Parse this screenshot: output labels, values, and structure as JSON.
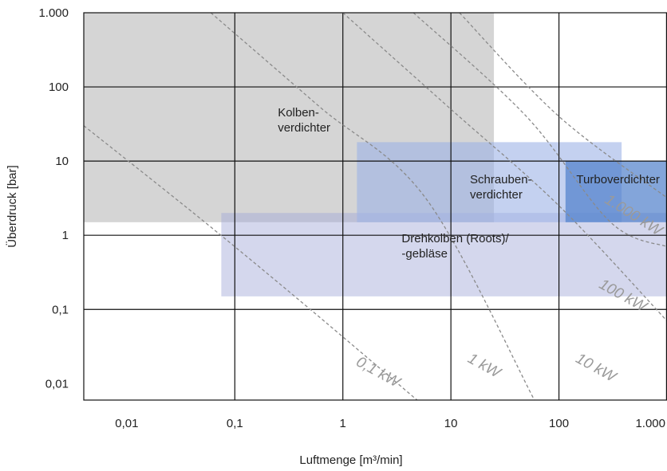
{
  "chart_data": {
    "type": "area",
    "title": "",
    "xlabel": "Luftmenge [m³/min]",
    "ylabel": "Überdruck [bar]",
    "x_scale": "log",
    "y_scale": "log",
    "xlim": [
      0.004,
      1000
    ],
    "ylim": [
      0.006,
      1000
    ],
    "x_ticks": [
      {
        "value": 0.01,
        "label": "0,01"
      },
      {
        "value": 0.1,
        "label": "0,1"
      },
      {
        "value": 1,
        "label": "1"
      },
      {
        "value": 10,
        "label": "10"
      },
      {
        "value": 100,
        "label": "100"
      },
      {
        "value": 1000,
        "label": "1.000"
      }
    ],
    "y_ticks": [
      {
        "value": 0.01,
        "label": "0,01"
      },
      {
        "value": 0.1,
        "label": "0,1"
      },
      {
        "value": 1,
        "label": "1"
      },
      {
        "value": 10,
        "label": "10"
      },
      {
        "value": 100,
        "label": "100"
      },
      {
        "value": 1000,
        "label": "1.000"
      }
    ],
    "grid_x": [
      0.1,
      1,
      10,
      100
    ],
    "grid_y": [
      0.1,
      1,
      10,
      100
    ],
    "regions": [
      {
        "name": "Kolbenverdichter",
        "label_lines": [
          "Kolben-",
          "verdichter"
        ],
        "x_range": [
          0.004,
          25
        ],
        "y_range": [
          1.5,
          1000
        ],
        "color": "#b9b9b9",
        "opacity": 0.6,
        "label_at": [
          0.25,
          40
        ]
      },
      {
        "name": "Drehkolben (Roots)",
        "label_lines": [
          "Drehkolben (Roots)/",
          "-gebläse"
        ],
        "x_range": [
          0.075,
          1000
        ],
        "y_range": [
          0.15,
          2
        ],
        "color": "#9fa6d6",
        "opacity": 0.45,
        "label_at": [
          3.5,
          0.8
        ]
      },
      {
        "name": "Schraubenverdichter",
        "label_lines": [
          "Schrauben-",
          "verdichter"
        ],
        "x_range": [
          1.35,
          380
        ],
        "y_range": [
          1.5,
          18
        ],
        "color": "#9cb3e6",
        "opacity": 0.6,
        "label_at": [
          15,
          5
        ]
      },
      {
        "name": "Turboverdichter",
        "label_lines": [
          "Turboverdichter"
        ],
        "x_range": [
          115,
          1000
        ],
        "y_range": [
          1.5,
          10
        ],
        "color": "#4f7fcb",
        "opacity": 0.7,
        "label_at": [
          145,
          5
        ]
      }
    ],
    "power_curves": [
      {
        "label": "0,1 kW",
        "points": [
          [
            0.004,
            30
          ],
          [
            0.05,
            1.6
          ],
          [
            0.5,
            0.1
          ],
          [
            5,
            0.0058
          ]
        ],
        "label_at": [
          1.3,
          0.018
        ],
        "label_angle": 29
      },
      {
        "label": "1 kW",
        "points": [
          [
            0.06,
            1000
          ],
          [
            0.6,
            55
          ],
          [
            6,
            3
          ],
          [
            60,
            0.0058
          ]
        ],
        "label_at": [
          14,
          0.02
        ],
        "label_angle": 29
      },
      {
        "label": "10 kW",
        "points": [
          [
            1.0,
            1000
          ],
          [
            10,
            50
          ],
          [
            100,
            2.5
          ],
          [
            1000,
            0.07
          ]
        ],
        "label_at": [
          140,
          0.02
        ],
        "label_angle": 29
      },
      {
        "label": "100 kW",
        "points": [
          [
            4.5,
            1000
          ],
          [
            50,
            40
          ],
          [
            300,
            1.5
          ],
          [
            1000,
            0.7
          ]
        ],
        "label_at": [
          230,
          0.2
        ],
        "label_angle": 29
      },
      {
        "label": "1.000 kW",
        "points": [
          [
            12,
            1000
          ],
          [
            100,
            40
          ],
          [
            1000,
            3.2
          ]
        ],
        "label_at": [
          260,
          2.8
        ],
        "label_angle": 32
      }
    ]
  }
}
